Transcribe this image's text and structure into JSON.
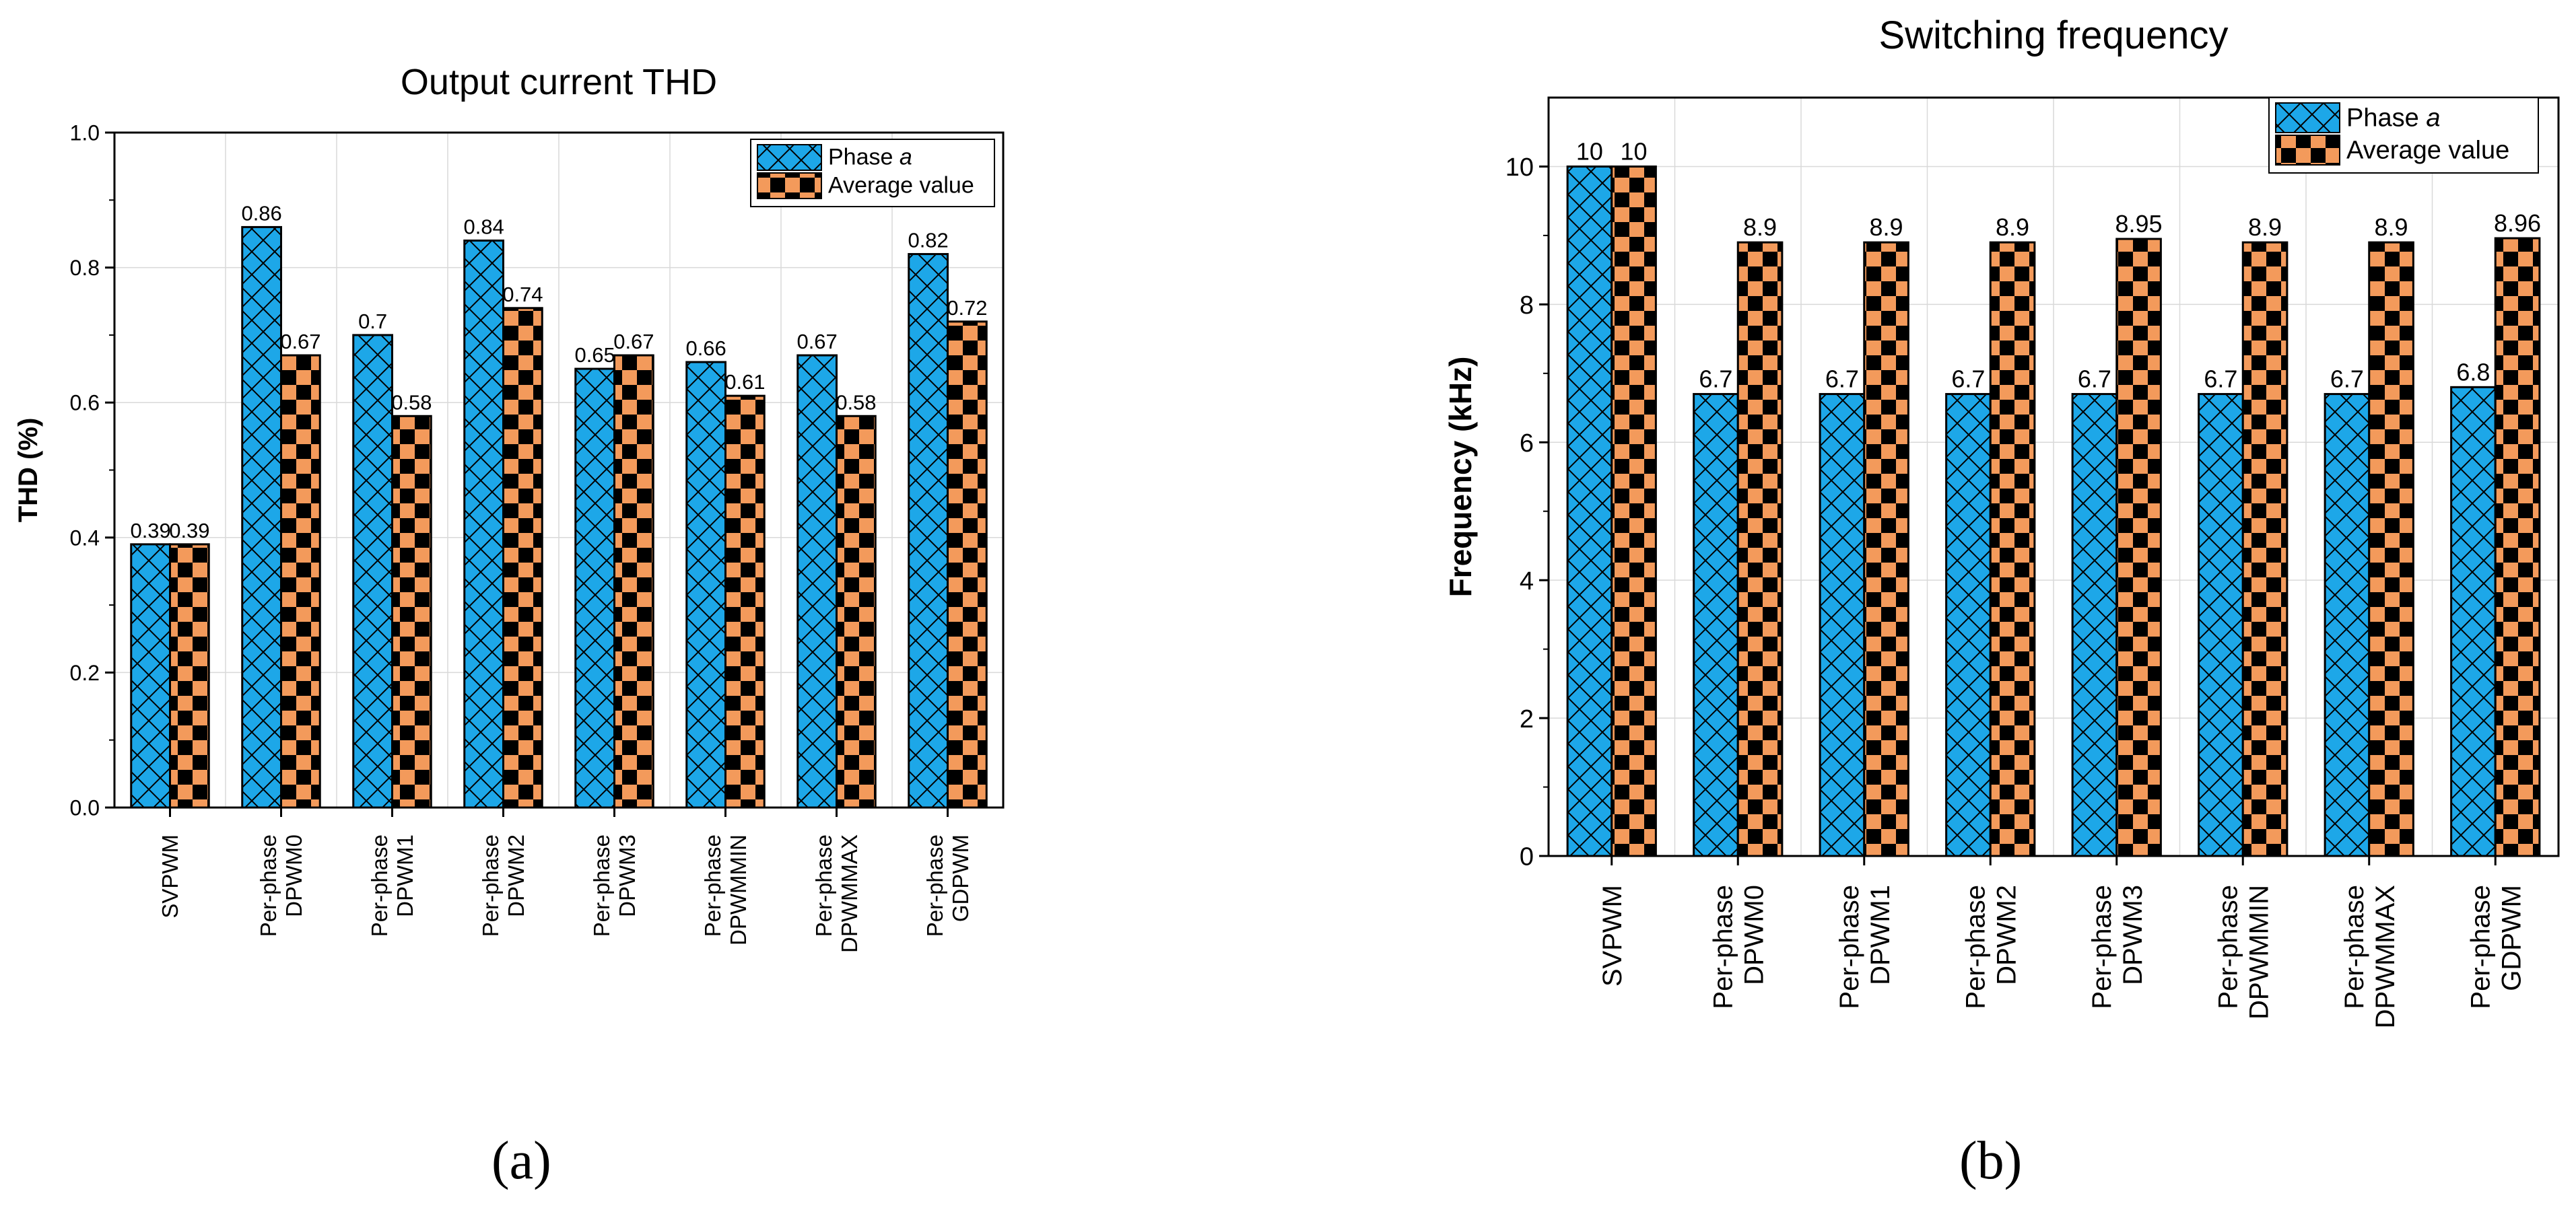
{
  "panel_labels": [
    "(a)",
    "(b)"
  ],
  "colors": {
    "phase_a": "#1da7e8",
    "average": "#f39a5b",
    "grid": "#d9d9d9",
    "axis": "#000000"
  },
  "chart_data": [
    {
      "type": "bar",
      "title": "Output current THD",
      "xlabel": "",
      "ylabel": "THD (%)",
      "ylim": [
        0,
        1.0
      ],
      "yticks": [
        "0.0",
        "0.2",
        "0.4",
        "0.6",
        "0.8",
        "1.0"
      ],
      "grid": true,
      "legend_position": "top-right",
      "categories": [
        [
          "SVPWM"
        ],
        [
          "Per-phase",
          "DPWM0"
        ],
        [
          "Per-phase",
          "DPWM1"
        ],
        [
          "Per-phase",
          "DPWM2"
        ],
        [
          "Per-phase",
          "DPWM3"
        ],
        [
          "Per-phase",
          "DPWMMIN"
        ],
        [
          "Per-phase",
          "DPWMMAX"
        ],
        [
          "Per-phase",
          "GDPWM"
        ]
      ],
      "series": [
        {
          "name": "Phase a",
          "name_main": "Phase ",
          "name_italic": "a",
          "pattern": "crosshatch",
          "values": [
            0.39,
            0.86,
            0.7,
            0.84,
            0.65,
            0.66,
            0.67,
            0.82
          ],
          "labels": [
            "0.39",
            "0.86",
            "0.7",
            "0.84",
            "0.65",
            "0.66",
            "0.67",
            "0.82"
          ]
        },
        {
          "name": "Average value",
          "name_main": "Average value",
          "name_italic": "",
          "pattern": "checker",
          "values": [
            0.39,
            0.67,
            0.58,
            0.74,
            0.67,
            0.61,
            0.58,
            0.72
          ],
          "labels": [
            "0.39",
            "0.67",
            "0.58",
            "0.74",
            "0.67",
            "0.61",
            "0.58",
            "0.72"
          ]
        }
      ]
    },
    {
      "type": "bar",
      "title": "Switching frequency",
      "xlabel": "",
      "ylabel": "Frequency (kHz)",
      "ylim": [
        0,
        11
      ],
      "yticks": [
        "0",
        "2",
        "4",
        "6",
        "8",
        "10"
      ],
      "grid": true,
      "legend_position": "top-right",
      "categories": [
        [
          "SVPWM"
        ],
        [
          "Per-phase",
          "DPWM0"
        ],
        [
          "Per-phase",
          "DPWM1"
        ],
        [
          "Per-phase",
          "DPWM2"
        ],
        [
          "Per-phase",
          "DPWM3"
        ],
        [
          "Per-phase",
          "DPWMMIN"
        ],
        [
          "Per-phase",
          "DPWMMAX"
        ],
        [
          "Per-phase",
          "GDPWM"
        ]
      ],
      "series": [
        {
          "name": "Phase a",
          "name_main": "Phase ",
          "name_italic": "a",
          "pattern": "crosshatch",
          "values": [
            10,
            6.7,
            6.7,
            6.7,
            6.7,
            6.7,
            6.7,
            6.8
          ],
          "labels": [
            "10",
            "6.7",
            "6.7",
            "6.7",
            "6.7",
            "6.7",
            "6.7",
            "6.8"
          ]
        },
        {
          "name": "Average value",
          "name_main": "Average value",
          "name_italic": "",
          "pattern": "checker",
          "values": [
            10,
            8.9,
            8.9,
            8.9,
            8.95,
            8.9,
            8.9,
            8.96
          ],
          "labels": [
            "10",
            "8.9",
            "8.9",
            "8.9",
            "8.95",
            "8.9",
            "8.9",
            "8.96"
          ]
        }
      ]
    }
  ]
}
